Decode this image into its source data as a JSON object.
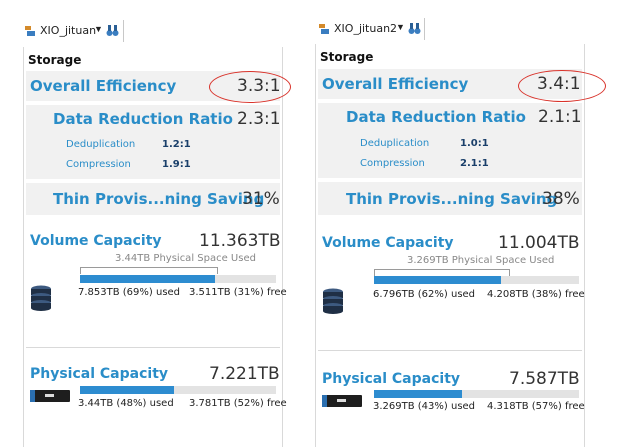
{
  "left": {
    "system_name": "XIO_jituan",
    "storage_title": "Storage",
    "overall_efficiency": {
      "label": "Overall Efficiency",
      "value": "3.3:1"
    },
    "data_reduction": {
      "label": "Data Reduction Ratio",
      "value": "2.3:1",
      "dedup_label": "Deduplication",
      "dedup_value": "1.2:1",
      "compression_label": "Compression",
      "compression_value": "1.9:1"
    },
    "thin_provisioning": {
      "label": "Thin Provis...ning Saving",
      "value": "31%"
    },
    "volume_capacity": {
      "label": "Volume Capacity",
      "value": "11.363TB",
      "physical_used_label": "3.44TB Physical Space Used",
      "used_text": "7.853TB (69%) used",
      "free_text": "3.511TB (31%) free",
      "used_fraction": 0.69,
      "physical_fraction": 0.3
    },
    "physical_capacity": {
      "label": "Physical Capacity",
      "value": "7.221TB",
      "used_text": "3.44TB (48%) used",
      "free_text": "3.781TB (52%) free",
      "used_fraction": 0.48
    }
  },
  "right": {
    "system_name": "XIO_jituan2",
    "storage_title": "Storage",
    "overall_efficiency": {
      "label": "Overall Efficiency",
      "value": "3.4:1"
    },
    "data_reduction": {
      "label": "Data Reduction Ratio",
      "value": "2.1:1",
      "dedup_label": "Deduplication",
      "dedup_value": "1.0:1",
      "compression_label": "Compression",
      "compression_value": "2.1:1"
    },
    "thin_provisioning": {
      "label": "Thin Provis...ning Saving",
      "value": "38%"
    },
    "volume_capacity": {
      "label": "Volume Capacity",
      "value": "11.004TB",
      "physical_used_label": "3.269TB Physical Space Used",
      "used_text": "6.796TB (62%) used",
      "free_text": "4.208TB (38%) free",
      "used_fraction": 0.62,
      "physical_fraction": 0.3
    },
    "physical_capacity": {
      "label": "Physical Capacity",
      "value": "7.587TB",
      "used_text": "3.269TB (43%) used",
      "free_text": "4.318TB (57%) free",
      "used_fraction": 0.43
    }
  },
  "colors": {
    "accent_blue": "#2a8dc8",
    "bar_fill": "#2d8cd0",
    "highlight_oval": "#d9332b"
  }
}
